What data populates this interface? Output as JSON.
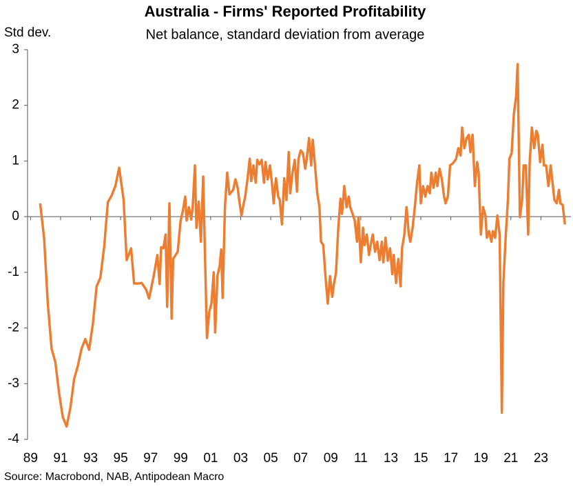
{
  "chart_data": {
    "type": "line",
    "title": "Australia - Firms' Reported Profitability",
    "subtitle": "Net balance, standard deviation from average",
    "y_label": "Std dev.",
    "source": "Source: Macrobond, NAB, Antipodean Macro",
    "xlim": [
      1988.8,
      2025
    ],
    "ylim": [
      -4,
      3
    ],
    "yticks": [
      -4,
      -3,
      -2,
      -1,
      0,
      1,
      2,
      3
    ],
    "xticks": [
      {
        "value": 1989,
        "label": "89"
      },
      {
        "value": 1991,
        "label": "91"
      },
      {
        "value": 1993,
        "label": "93"
      },
      {
        "value": 1995,
        "label": "95"
      },
      {
        "value": 1997,
        "label": "97"
      },
      {
        "value": 1999,
        "label": "99"
      },
      {
        "value": 2001,
        "label": "01"
      },
      {
        "value": 2003,
        "label": "03"
      },
      {
        "value": 2005,
        "label": "05"
      },
      {
        "value": 2007,
        "label": "07"
      },
      {
        "value": 2009,
        "label": "09"
      },
      {
        "value": 2011,
        "label": "11"
      },
      {
        "value": 2013,
        "label": "13"
      },
      {
        "value": 2015,
        "label": "15"
      },
      {
        "value": 2017,
        "label": "17"
      },
      {
        "value": 2019,
        "label": "19"
      },
      {
        "value": 2021,
        "label": "21"
      },
      {
        "value": 2023,
        "label": "23"
      }
    ],
    "x": [
      1989.64,
      1989.9,
      1990.15,
      1990.4,
      1990.65,
      1990.9,
      1991.15,
      1991.4,
      1991.65,
      1991.9,
      1992.15,
      1992.4,
      1992.65,
      1992.9,
      1993.15,
      1993.4,
      1993.65,
      1993.9,
      1994.15,
      1994.4,
      1994.65,
      1994.9,
      1995.2,
      1995.4,
      1995.7,
      1995.9,
      1996.2,
      1996.4,
      1996.7,
      1996.9,
      1997.2,
      1997.45,
      1997.6,
      1997.7,
      1997.85,
      1998.0,
      1998.1,
      1998.25,
      1998.4,
      1998.5,
      1998.8,
      1998.9,
      1999.0,
      1999.15,
      1999.3,
      1999.4,
      1999.55,
      1999.7,
      1999.8,
      1999.95,
      2000.05,
      2000.2,
      2000.35,
      2000.5,
      2000.6,
      2000.75,
      2000.9,
      2001.05,
      2001.2,
      2001.3,
      2001.45,
      2001.6,
      2001.7,
      2001.8,
      2001.95,
      2002.1,
      2002.25,
      2002.4,
      2002.5,
      2002.65,
      2002.8,
      2002.9,
      2003.05,
      2003.2,
      2003.3,
      2003.45,
      2003.6,
      2003.7,
      2003.85,
      2004.0,
      2004.1,
      2004.25,
      2004.4,
      2004.55,
      2004.65,
      2004.8,
      2004.95,
      2005.1,
      2005.2,
      2005.35,
      2005.5,
      2005.6,
      2005.75,
      2005.9,
      2006.05,
      2006.2,
      2006.3,
      2006.45,
      2006.6,
      2006.75,
      2006.85,
      2007.0,
      2007.15,
      2007.3,
      2007.4,
      2007.55,
      2007.7,
      2007.8,
      2007.95,
      2008.1,
      2008.25,
      2008.35,
      2008.5,
      2008.65,
      2008.8,
      2008.95,
      2009.1,
      2009.2,
      2009.35,
      2009.5,
      2009.65,
      2009.75,
      2009.9,
      2010.05,
      2010.2,
      2010.3,
      2010.45,
      2010.6,
      2010.75,
      2010.85,
      2011.0,
      2011.15,
      2011.25,
      2011.4,
      2011.55,
      2011.7,
      2011.8,
      2011.95,
      2012.1,
      2012.25,
      2012.4,
      2012.5,
      2012.65,
      2012.8,
      2012.95,
      2013.1,
      2013.2,
      2013.35,
      2013.5,
      2013.65,
      2013.75,
      2013.9,
      2014.05,
      2014.2,
      2014.3,
      2014.45,
      2014.6,
      2014.75,
      2014.9,
      2015.0,
      2015.15,
      2015.3,
      2015.45,
      2015.6,
      2015.7,
      2015.85,
      2016.0,
      2016.1,
      2016.25,
      2016.4,
      2016.55,
      2016.65,
      2016.8,
      2016.95,
      2017.1,
      2017.2,
      2017.35,
      2017.5,
      2017.65,
      2017.75,
      2017.9,
      2018.05,
      2018.2,
      2018.3,
      2018.45,
      2018.6,
      2018.75,
      2018.85,
      2019.0,
      2019.15,
      2019.3,
      2019.4,
      2019.55,
      2019.7,
      2019.8,
      2019.95,
      2020.1,
      2020.25,
      2020.4,
      2020.5,
      2020.65,
      2020.8,
      2020.9,
      2021.05,
      2021.2,
      2021.35,
      2021.45,
      2021.6,
      2021.75,
      2021.85,
      2022.0,
      2022.15,
      2022.25,
      2022.4,
      2022.55,
      2022.7,
      2022.8,
      2022.95,
      2023.1,
      2023.2,
      2023.35,
      2023.5,
      2023.65,
      2023.75,
      2023.9,
      2024.05,
      2024.2,
      2024.3,
      2024.45,
      2024.6
    ],
    "series": [
      {
        "color": "#ed7d31",
        "values": [
          0.24,
          -0.38,
          -1.56,
          -2.37,
          -2.61,
          -3.17,
          -3.6,
          -3.77,
          -3.44,
          -2.92,
          -2.68,
          -2.37,
          -2.2,
          -2.39,
          -1.93,
          -1.25,
          -1.1,
          -0.55,
          0.26,
          0.38,
          0.55,
          0.88,
          0.3,
          -0.78,
          -0.57,
          -1.2,
          -1.2,
          -1.19,
          -1.31,
          -1.47,
          -1.07,
          -0.69,
          -1.21,
          -0.55,
          -0.57,
          -0.32,
          -1.62,
          0.24,
          -1.83,
          -0.76,
          -0.63,
          -0.35,
          -0.07,
          0.11,
          0.36,
          -0.07,
          0.17,
          -0.05,
          0.17,
          0.92,
          -0.2,
          0.27,
          -0.45,
          0.72,
          -0.45,
          -2.18,
          -1.72,
          -1.56,
          -1.0,
          -2.08,
          -1.07,
          -0.88,
          -0.59,
          -1.46,
          0.17,
          0.79,
          0.4,
          0.45,
          0.48,
          0.67,
          0.52,
          0.3,
          0.02,
          0.24,
          0.36,
          0.67,
          1.04,
          0.64,
          0.92,
          0.61,
          1.02,
          0.94,
          1.02,
          0.61,
          0.98,
          0.67,
          0.92,
          0.55,
          0.24,
          0.69,
          0.36,
          0.3,
          -0.14,
          0.69,
          0.3,
          1.16,
          0.42,
          0.79,
          1.02,
          0.45,
          1.04,
          1.19,
          1.14,
          0.86,
          1.04,
          1.41,
          0.92,
          1.38,
          0.92,
          0.42,
          0.17,
          -0.45,
          -0.51,
          -1.07,
          -1.56,
          -1.07,
          -1.44,
          -1.23,
          -1.0,
          -0.2,
          0.32,
          0.05,
          0.55,
          0.17,
          0.36,
          0.17,
          0.05,
          -0.07,
          -0.45,
          -0.01,
          -0.82,
          -0.2,
          -0.51,
          -0.32,
          -0.69,
          -0.45,
          -0.32,
          -0.63,
          -0.45,
          -0.78,
          -0.45,
          -0.82,
          -0.38,
          -0.79,
          -0.57,
          -1.03,
          -0.69,
          -1.19,
          -0.76,
          -1.25,
          -0.57,
          -0.32,
          0.17,
          -0.32,
          -0.45,
          -0.2,
          0.17,
          0.61,
          0.92,
          0.24,
          0.55,
          0.36,
          0.55,
          0.42,
          0.79,
          0.52,
          0.79,
          0.55,
          0.86,
          0.67,
          0.36,
          0.24,
          0.36,
          0.92,
          0.95,
          0.98,
          1.04,
          1.23,
          1.1,
          1.6,
          1.23,
          1.41,
          1.47,
          1.16,
          1.47,
          0.55,
          0.98,
          0.79,
          -0.32,
          0.17,
          0.02,
          -0.38,
          -0.26,
          -0.45,
          -0.26,
          -0.38,
          0.02,
          -0.32,
          -3.52,
          -1.19,
          -0.38,
          0.3,
          1.04,
          1.14,
          1.85,
          2.16,
          2.74,
          -0.01,
          0.3,
          0.92,
          0.92,
          -0.32,
          0.98,
          1.6,
          1.23,
          1.54,
          1.47,
          0.98,
          1.29,
          0.92,
          0.92,
          0.55,
          0.92,
          0.67,
          0.3,
          0.24,
          0.48,
          0.24,
          0.21,
          -0.14
        ]
      }
    ]
  }
}
